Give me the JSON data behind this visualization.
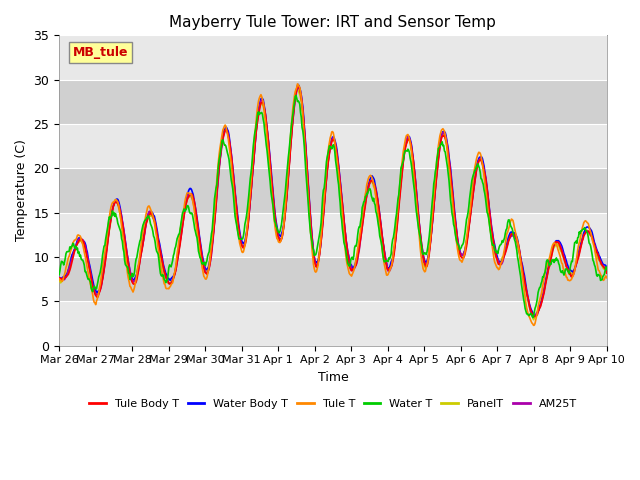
{
  "title": "Mayberry Tule Tower: IRT and Sensor Temp",
  "xlabel": "Time",
  "ylabel": "Temperature (C)",
  "ylim": [
    0,
    35
  ],
  "yticks": [
    0,
    5,
    10,
    15,
    20,
    25,
    30,
    35
  ],
  "date_labels": [
    "Mar 26",
    "Mar 27",
    "Mar 28",
    "Mar 29",
    "Mar 30",
    "Mar 31",
    "Apr 1",
    "Apr 2",
    "Apr 3",
    "Apr 4",
    "Apr 5",
    "Apr 6",
    "Apr 7",
    "Apr 8",
    "Apr 9",
    "Apr 10"
  ],
  "legend_labels": [
    "Tule Body T",
    "Water Body T",
    "Tule T",
    "Water T",
    "PanelT",
    "AM25T"
  ],
  "legend_colors": [
    "#ff0000",
    "#0000ff",
    "#ff8800",
    "#00cc00",
    "#cccc00",
    "#aa00aa"
  ],
  "watermark_text": "MB_tule",
  "watermark_color": "#cc0000",
  "watermark_bg": "#ffff99",
  "plot_bg_light": "#e8e8e8",
  "plot_bg_dark": "#d0d0d0",
  "n_days": 15,
  "points_per_day": 48,
  "figsize": [
    6.4,
    4.8
  ],
  "dpi": 100
}
